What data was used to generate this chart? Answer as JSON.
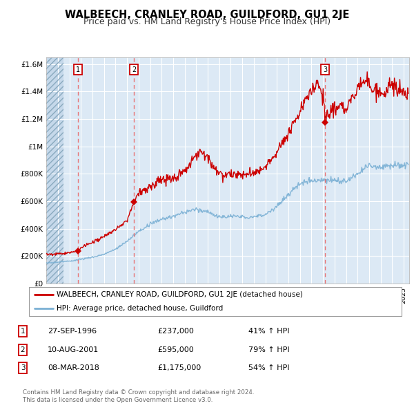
{
  "title": "WALBEECH, CRANLEY ROAD, GUILDFORD, GU1 2JE",
  "subtitle": "Price paid vs. HM Land Registry's House Price Index (HPI)",
  "title_fontsize": 10.5,
  "subtitle_fontsize": 9,
  "background_color": "#ffffff",
  "plot_bg_color": "#dce9f5",
  "grid_color": "#ffffff",
  "xmin": 1994.0,
  "xmax": 2025.5,
  "ymin": 0,
  "ymax": 1650000,
  "yticks": [
    0,
    200000,
    400000,
    600000,
    800000,
    1000000,
    1200000,
    1400000,
    1600000
  ],
  "ytick_labels": [
    "£0",
    "£200K",
    "£400K",
    "£600K",
    "£800K",
    "£1M",
    "£1.2M",
    "£1.4M",
    "£1.6M"
  ],
  "red_line_color": "#cc0000",
  "blue_line_color": "#7ab0d4",
  "marker_color": "#cc0000",
  "dashed_line_color": "#e87070",
  "sale_points": [
    {
      "year": 1996.75,
      "price": 237000,
      "label": "1"
    },
    {
      "year": 2001.61,
      "price": 595000,
      "label": "2"
    },
    {
      "year": 2018.18,
      "price": 1175000,
      "label": "3"
    }
  ],
  "legend_entries": [
    "WALBEECH, CRANLEY ROAD, GUILDFORD, GU1 2JE (detached house)",
    "HPI: Average price, detached house, Guildford"
  ],
  "table_rows": [
    {
      "num": "1",
      "date": "27-SEP-1996",
      "price": "£237,000",
      "change": "41% ↑ HPI"
    },
    {
      "num": "2",
      "date": "10-AUG-2001",
      "price": "£595,000",
      "change": "79% ↑ HPI"
    },
    {
      "num": "3",
      "date": "08-MAR-2018",
      "price": "£1,175,000",
      "change": "54% ↑ HPI"
    }
  ],
  "footnote": "Contains HM Land Registry data © Crown copyright and database right 2024.\nThis data is licensed under the Open Government Licence v3.0.",
  "hatch_end_year": 1995.5
}
